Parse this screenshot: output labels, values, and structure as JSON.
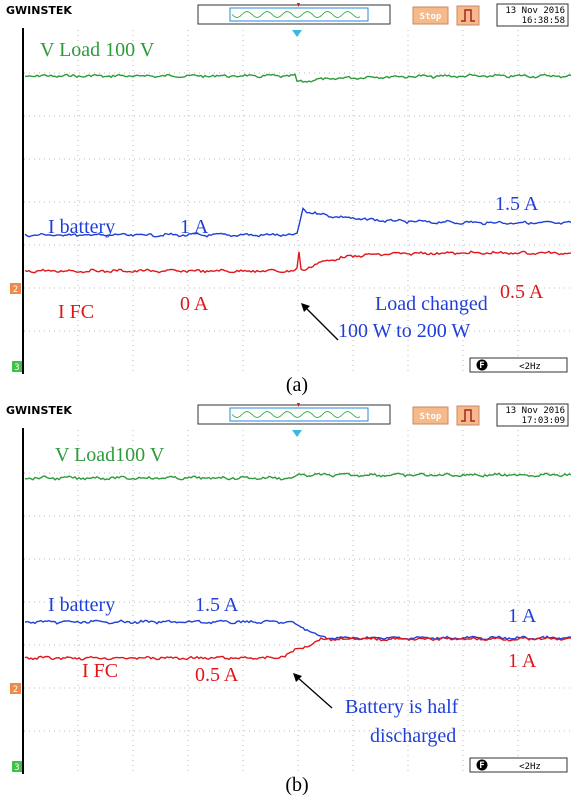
{
  "panels": [
    {
      "header": {
        "brand": "GWINSTEK",
        "status": "Stop",
        "date": "13 Nov 2016",
        "time": "16:38:58",
        "footer": "F",
        "rate": "<2Hz"
      },
      "channels": [
        "2",
        "3"
      ],
      "labels": {
        "v_load": "V Load 100 V",
        "i_battery": "I battery",
        "battery_before": "1 A",
        "battery_after": "1.5 A",
        "i_fc": "I FC",
        "fc_before": "0 A",
        "fc_after": "0.5 A",
        "note_line1": "Load changed",
        "note_line2": "100 W to 200 W"
      },
      "caption": "(a)"
    },
    {
      "header": {
        "brand": "GWINSTEK",
        "status": "Stop",
        "date": "13 Nov 2016",
        "time": "17:03:09",
        "footer": "F",
        "rate": "<2Hz"
      },
      "channels": [
        "2",
        "3"
      ],
      "labels": {
        "v_load": "V Load100 V",
        "i_battery": "I battery",
        "battery_before": "1.5 A",
        "battery_after": "1 A",
        "i_fc": "I FC",
        "fc_before": "0.5 A",
        "fc_after": "1 A",
        "note_line1": "Battery is half",
        "note_line2": "discharged"
      },
      "caption": "(b)"
    }
  ]
}
